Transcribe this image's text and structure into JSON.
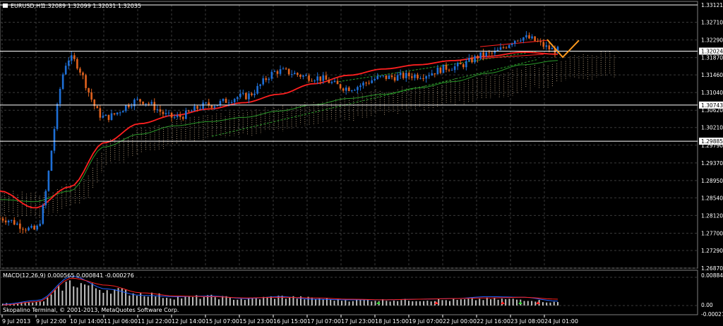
{
  "header": {
    "symbol_text": "EURUSD,H1",
    "ohlc_text": "1.32089 1.32099 1.32031 1.32035"
  },
  "price_axis": {
    "ticks": [
      "1.33121",
      "1.32710",
      "1.32290",
      "1.31870",
      "1.31460",
      "1.31040",
      "1.30620",
      "1.30210",
      "1.29790",
      "1.29370",
      "1.28950",
      "1.28540",
      "1.28120",
      "1.27700",
      "1.27290",
      "1.26870"
    ],
    "current_price_label": "1.32024",
    "hline_labels": [
      "1.30743",
      "1.29885"
    ]
  },
  "macd_panel": {
    "title_text": "MACD(12,26,9) 0.000565 0.000841 -0.000276",
    "axis_top": "0.00884",
    "axis_zero": "0.00",
    "axis_bottom": "-0.00027"
  },
  "time_axis": {
    "labels": [
      "9 Jul 2013",
      "9 Jul 22:00",
      "10 Jul 14:00",
      "11 Jul 06:00",
      "11 Jul 22:00",
      "12 Jul 14:00",
      "15 Jul 07:00",
      "15 Jul 23:00",
      "16 Jul 15:00",
      "17 Jul 07:00",
      "17 Jul 23:00",
      "18 Jul 15:00",
      "19 Jul 07:00",
      "22 Jul 00:00",
      "22 Jul 16:00",
      "23 Jul 08:00",
      "24 Jul 01:00"
    ]
  },
  "copyright": "Skopalino Terminal, © 2001-2013, MetaQuotes Software Corp.",
  "colors": {
    "background": "#000000",
    "bull_candle": "#1e6fd6",
    "bear_candle": "#e0621e",
    "ma_red": "#ff2020",
    "ma_green": "#2a9a2a",
    "cloud": "#e8c9a0",
    "hline": "#ffffff",
    "zigzag": "#ff9a1e",
    "macd_line": "#2060ff",
    "signal_line": "#ff2020"
  },
  "chart_data": {
    "type": "line",
    "title": "EURUSD,H1",
    "x": [
      "9 Jul 2013",
      "9 Jul 22:00",
      "10 Jul 14:00",
      "11 Jul 06:00",
      "11 Jul 22:00",
      "12 Jul 14:00",
      "15 Jul 07:00",
      "15 Jul 23:00",
      "16 Jul 15:00",
      "17 Jul 07:00",
      "17 Jul 23:00",
      "18 Jul 15:00",
      "19 Jul 07:00",
      "22 Jul 00:00",
      "22 Jul 16:00",
      "23 Jul 08:00",
      "24 Jul 01:00"
    ],
    "ylim": [
      1.2687,
      1.33121
    ],
    "grid": true,
    "series": [
      {
        "values": [
          1.2805,
          1.2778,
          1.3185,
          1.3045,
          1.3085,
          1.3045,
          1.3075,
          1.3095,
          1.3155,
          1.314,
          1.3115,
          1.314,
          1.3145,
          1.3165,
          1.3195,
          1.3235,
          1.3204
        ]
      },
      {
        "values": [
          1.285,
          1.2845,
          1.287,
          1.2975,
          1.3005,
          1.3025,
          1.3035,
          1.3045,
          1.306,
          1.3075,
          1.309,
          1.31,
          1.3115,
          1.313,
          1.315,
          1.317,
          1.318
        ]
      },
      {
        "values": [
          1.287,
          1.283,
          1.288,
          1.2985,
          1.303,
          1.305,
          1.3065,
          1.308,
          1.31,
          1.3125,
          1.3145,
          1.316,
          1.317,
          1.318,
          1.319,
          1.32,
          1.3195
        ]
      }
    ],
    "horizontal_levels": [
      1.33121,
      1.32024,
      1.30743,
      1.29885
    ],
    "macd": {
      "value": 0.000565,
      "signal": 0.000841,
      "histogram": -0.000276
    }
  }
}
